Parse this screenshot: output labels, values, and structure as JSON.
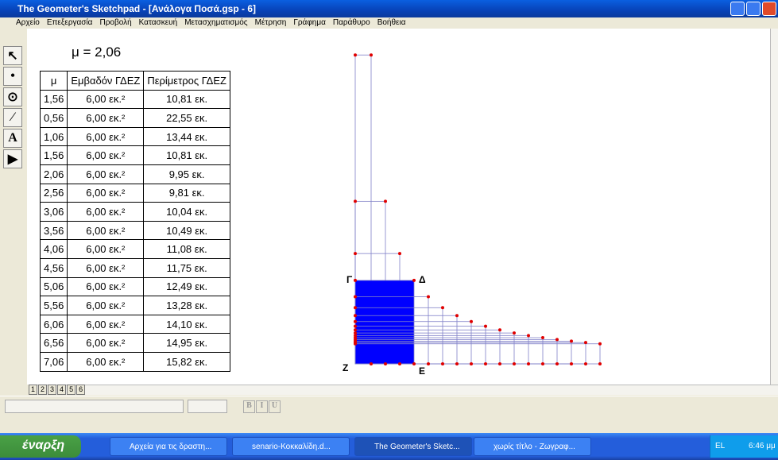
{
  "window": {
    "title": "The Geometer's Sketchpad - [Ανάλογα Ποσά.gsp - 6]",
    "menu": [
      "Αρχείο",
      "Επεξεργασία",
      "Προβολή",
      "Κατασκευή",
      "Μετασχηματισμός",
      "Μέτρηση",
      "Γράφημα",
      "Παράθυρο",
      "Βοήθεια"
    ]
  },
  "tools": {
    "text_tool": "A"
  },
  "sketch": {
    "parameter": "μ = 2,06",
    "table": {
      "header": [
        "μ",
        "Εμβαδόν ΓΔΕΖ",
        "Περίμετρος ΓΔΕΖ"
      ],
      "rows": [
        [
          "1,56",
          "6,00 εκ.²",
          "10,81 εκ."
        ],
        [
          "0,56",
          "6,00 εκ.²",
          "22,55 εκ."
        ],
        [
          "1,06",
          "6,00 εκ.²",
          "13,44 εκ."
        ],
        [
          "1,56",
          "6,00 εκ.²",
          "10,81 εκ."
        ],
        [
          "2,06",
          "6,00 εκ.²",
          "9,95 εκ."
        ],
        [
          "2,56",
          "6,00 εκ.²",
          "9,81 εκ."
        ],
        [
          "3,06",
          "6,00 εκ.²",
          "10,04 εκ."
        ],
        [
          "3,56",
          "6,00 εκ.²",
          "10,49 εκ."
        ],
        [
          "4,06",
          "6,00 εκ.²",
          "11,08 εκ."
        ],
        [
          "4,56",
          "6,00 εκ.²",
          "11,75 εκ."
        ],
        [
          "5,06",
          "6,00 εκ.²",
          "12,49 εκ."
        ],
        [
          "5,56",
          "6,00 εκ.²",
          "13,28 εκ."
        ],
        [
          "6,06",
          "6,00 εκ.²",
          "14,10 εκ."
        ],
        [
          "6,56",
          "6,00 εκ.²",
          "14,95 εκ."
        ],
        [
          "7,06",
          "6,00 εκ.²",
          "15,82 εκ."
        ]
      ]
    },
    "points": [
      "Γ",
      "Δ",
      "Ζ",
      "Ε"
    ],
    "page_tabs": [
      "1",
      "2",
      "3",
      "4",
      "5",
      "6"
    ]
  },
  "format_toolbar": {
    "buttons": [
      "B",
      "I",
      "U"
    ]
  },
  "taskbar": {
    "start": "έναρξη",
    "items": [
      "Αρχεία για τις δραστη...",
      "senario-Κοκκαλίδη.d...",
      "The Geometer's Sketc...",
      "χωρίς τίτλο - Ζωγραφ..."
    ],
    "language": "EL",
    "clock": "6:46 μμ"
  }
}
